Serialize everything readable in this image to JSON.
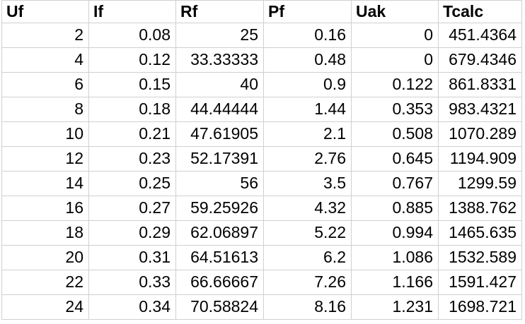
{
  "table": {
    "columns": [
      "Uf",
      "If",
      "Rf",
      "Pf",
      "Uak",
      "Tcalc"
    ],
    "rows": [
      [
        "2",
        "0.08",
        "25",
        "0.16",
        "0",
        "451.4364"
      ],
      [
        "4",
        "0.12",
        "33.33333",
        "0.48",
        "0",
        "679.4346"
      ],
      [
        "6",
        "0.15",
        "40",
        "0.9",
        "0.122",
        "861.8331"
      ],
      [
        "8",
        "0.18",
        "44.44444",
        "1.44",
        "0.353",
        "983.4321"
      ],
      [
        "10",
        "0.21",
        "47.61905",
        "2.1",
        "0.508",
        "1070.289"
      ],
      [
        "12",
        "0.23",
        "52.17391",
        "2.76",
        "0.645",
        "1194.909"
      ],
      [
        "14",
        "0.25",
        "56",
        "3.5",
        "0.767",
        "1299.59"
      ],
      [
        "16",
        "0.27",
        "59.25926",
        "4.32",
        "0.885",
        "1388.762"
      ],
      [
        "18",
        "0.29",
        "62.06897",
        "5.22",
        "0.994",
        "1465.635"
      ],
      [
        "20",
        "0.31",
        "64.51613",
        "6.2",
        "1.086",
        "1532.589"
      ],
      [
        "22",
        "0.33",
        "66.66667",
        "7.26",
        "1.166",
        "1591.427"
      ],
      [
        "24",
        "0.34",
        "70.58824",
        "8.16",
        "1.231",
        "1698.721"
      ]
    ]
  },
  "colors": {
    "background": "#ffffff",
    "gridline": "#d0d0d0",
    "text": "#000000"
  }
}
